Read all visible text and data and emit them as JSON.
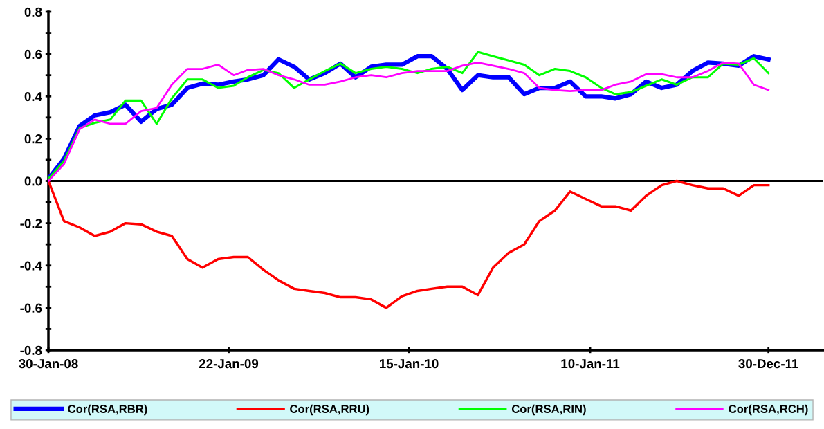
{
  "chart_data": {
    "type": "line",
    "x": [
      "2008-01-30",
      "2008-03-01",
      "2008-04-01",
      "2008-05-01",
      "2008-06-01",
      "2008-07-01",
      "2008-08-01",
      "2008-09-01",
      "2008-10-01",
      "2008-11-01",
      "2008-12-01",
      "2009-01-01",
      "2009-02-01",
      "2009-03-01",
      "2009-04-01",
      "2009-05-01",
      "2009-06-01",
      "2009-07-01",
      "2009-08-01",
      "2009-09-01",
      "2009-10-01",
      "2009-11-01",
      "2009-12-01",
      "2010-01-01",
      "2010-02-01",
      "2010-03-01",
      "2010-04-01",
      "2010-05-01",
      "2010-06-01",
      "2010-07-01",
      "2010-08-01",
      "2010-09-01",
      "2010-10-01",
      "2010-11-01",
      "2010-12-01",
      "2011-01-01",
      "2011-02-01",
      "2011-03-01",
      "2011-04-01",
      "2011-05-01",
      "2011-06-01",
      "2011-07-01",
      "2011-08-01",
      "2011-09-01",
      "2011-10-01",
      "2011-11-01",
      "2011-12-01",
      "2011-12-30"
    ],
    "series": [
      {
        "name": "Cor(RSA,RBR)",
        "color": "#0000ff",
        "values": [
          0.01,
          0.105,
          0.26,
          0.31,
          0.325,
          0.36,
          0.28,
          0.34,
          0.36,
          0.44,
          0.46,
          0.455,
          0.47,
          0.48,
          0.5,
          0.575,
          0.54,
          0.48,
          0.51,
          0.555,
          0.49,
          0.54,
          0.55,
          0.55,
          0.59,
          0.59,
          0.53,
          0.43,
          0.5,
          0.49,
          0.49,
          0.41,
          0.44,
          0.44,
          0.47,
          0.4,
          0.4,
          0.39,
          0.41,
          0.47,
          0.44,
          0.455,
          0.52,
          0.56,
          0.555,
          0.545,
          0.59,
          0.575
        ]
      },
      {
        "name": "Cor(RSA,RRU)",
        "color": "#ff0000",
        "values": [
          0.0,
          -0.19,
          -0.22,
          -0.26,
          -0.24,
          -0.2,
          -0.205,
          -0.24,
          -0.26,
          -0.37,
          -0.41,
          -0.37,
          -0.36,
          -0.36,
          -0.42,
          -0.47,
          -0.51,
          -0.52,
          -0.53,
          -0.55,
          -0.55,
          -0.56,
          -0.6,
          -0.545,
          -0.52,
          -0.51,
          -0.5,
          -0.5,
          -0.54,
          -0.41,
          -0.34,
          -0.3,
          -0.19,
          -0.14,
          -0.05,
          -0.085,
          -0.12,
          -0.12,
          -0.14,
          -0.07,
          -0.02,
          0.0,
          -0.02,
          -0.035,
          -0.035,
          -0.07,
          -0.02,
          -0.02
        ]
      },
      {
        "name": "Cor(RSA,RIN)",
        "color": "#00ff00",
        "values": [
          0.01,
          0.095,
          0.25,
          0.275,
          0.29,
          0.38,
          0.38,
          0.27,
          0.39,
          0.48,
          0.48,
          0.44,
          0.45,
          0.49,
          0.525,
          0.51,
          0.44,
          0.48,
          0.52,
          0.555,
          0.51,
          0.53,
          0.54,
          0.53,
          0.51,
          0.53,
          0.54,
          0.51,
          0.61,
          0.59,
          0.57,
          0.55,
          0.5,
          0.53,
          0.52,
          0.49,
          0.44,
          0.41,
          0.42,
          0.45,
          0.48,
          0.455,
          0.49,
          0.49,
          0.555,
          0.55,
          0.58,
          0.51
        ]
      },
      {
        "name": "Cor(RSA,RCH)",
        "color": "#ff00ff",
        "values": [
          0.0,
          0.08,
          0.245,
          0.29,
          0.27,
          0.27,
          0.33,
          0.345,
          0.455,
          0.53,
          0.53,
          0.55,
          0.5,
          0.525,
          0.53,
          0.5,
          0.48,
          0.455,
          0.455,
          0.47,
          0.49,
          0.5,
          0.49,
          0.51,
          0.52,
          0.52,
          0.52,
          0.545,
          0.56,
          0.545,
          0.53,
          0.51,
          0.44,
          0.43,
          0.425,
          0.43,
          0.43,
          0.455,
          0.47,
          0.505,
          0.505,
          0.49,
          0.49,
          0.52,
          0.56,
          0.555,
          0.455,
          0.43
        ]
      }
    ],
    "xlim": [
      "2008-01-30",
      "2012-04-17"
    ],
    "xticks": [
      {
        "value": "2008-01-30",
        "label": "30-Jan-08"
      },
      {
        "value": "2009-01-22",
        "label": "22-Jan-09"
      },
      {
        "value": "2010-01-15",
        "label": "15-Jan-10"
      },
      {
        "value": "2011-01-10",
        "label": "10-Jan-11"
      },
      {
        "value": "2011-12-30",
        "label": "30-Dec-11"
      }
    ],
    "ylim": [
      -0.8,
      0.8
    ],
    "yticks": [
      {
        "value": -0.8,
        "label": "-0.8"
      },
      {
        "value": -0.7,
        "label": null
      },
      {
        "value": -0.6,
        "label": "-0.6"
      },
      {
        "value": -0.5,
        "label": null
      },
      {
        "value": -0.4,
        "label": "-0.4"
      },
      {
        "value": -0.3,
        "label": null
      },
      {
        "value": -0.2,
        "label": "-0.2"
      },
      {
        "value": -0.1,
        "label": null
      },
      {
        "value": 0,
        "label": "0.0"
      },
      {
        "value": 0.1,
        "label": null
      },
      {
        "value": 0.2,
        "label": "0.2"
      },
      {
        "value": 0.3,
        "label": null
      },
      {
        "value": 0.4,
        "label": "0.4"
      },
      {
        "value": 0.5,
        "label": null
      },
      {
        "value": 0.6,
        "label": "0.6"
      },
      {
        "value": 0.7,
        "label": null
      },
      {
        "value": 0.8,
        "label": "0.8"
      }
    ],
    "ref_lines": [
      {
        "axis": "y",
        "value": 0,
        "color": "#000000"
      }
    ],
    "grid": false,
    "legend": "bottom",
    "marker": "none",
    "line_style": "solid"
  }
}
